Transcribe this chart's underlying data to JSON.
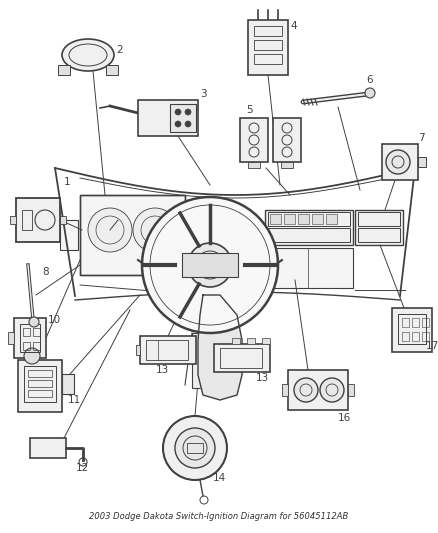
{
  "title": "2003 Dodge Dakota Switch-Ignition Diagram for 56045112AB",
  "bg_color": "#ffffff",
  "lc": "#404040",
  "figsize": [
    4.38,
    5.33
  ],
  "dpi": 100,
  "title_fontsize": 6.0,
  "label_fontsize": 7.5
}
